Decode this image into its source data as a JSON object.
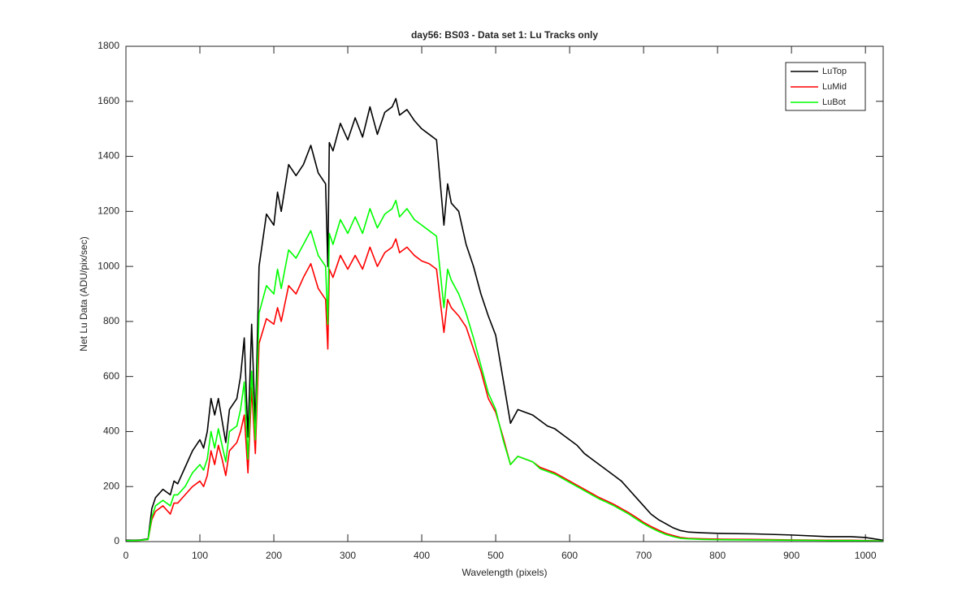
{
  "chart_data": {
    "type": "line",
    "title": "day56: BS03 - Data set 1: Lu Tracks only",
    "xlabel": "Wavelength (pixels)",
    "ylabel": "Net Lu Data (ADU/pix/sec)",
    "x": [
      0,
      10,
      20,
      30,
      35,
      40,
      50,
      60,
      65,
      70,
      80,
      90,
      100,
      105,
      110,
      115,
      120,
      125,
      130,
      135,
      140,
      150,
      155,
      160,
      165,
      170,
      175,
      180,
      190,
      200,
      205,
      210,
      220,
      230,
      240,
      250,
      260,
      270,
      273,
      275,
      280,
      290,
      300,
      310,
      320,
      330,
      340,
      350,
      360,
      365,
      370,
      380,
      390,
      400,
      410,
      420,
      430,
      435,
      440,
      450,
      460,
      470,
      480,
      490,
      500,
      510,
      520,
      530,
      540,
      550,
      560,
      570,
      580,
      590,
      600,
      610,
      620,
      630,
      640,
      650,
      660,
      670,
      680,
      690,
      700,
      710,
      720,
      730,
      740,
      750,
      760,
      780,
      800,
      850,
      900,
      950,
      980,
      1000,
      1024
    ],
    "series": [
      {
        "name": "LuTop",
        "color": "#000000",
        "values": [
          5,
          5,
          6,
          10,
          120,
          160,
          190,
          170,
          220,
          210,
          270,
          330,
          370,
          340,
          400,
          520,
          460,
          520,
          440,
          360,
          480,
          520,
          600,
          740,
          380,
          790,
          420,
          1000,
          1190,
          1150,
          1270,
          1200,
          1370,
          1330,
          1370,
          1440,
          1340,
          1300,
          1000,
          1450,
          1420,
          1520,
          1460,
          1540,
          1470,
          1580,
          1480,
          1560,
          1580,
          1610,
          1550,
          1570,
          1530,
          1500,
          1480,
          1460,
          1150,
          1300,
          1230,
          1200,
          1080,
          1000,
          900,
          820,
          750,
          590,
          430,
          480,
          470,
          460,
          440,
          420,
          410,
          390,
          370,
          350,
          320,
          300,
          280,
          260,
          240,
          220,
          190,
          160,
          130,
          100,
          80,
          65,
          50,
          40,
          35,
          32,
          30,
          28,
          24,
          18,
          18,
          15,
          5
        ]
      },
      {
        "name": "LuMid",
        "color": "#ff0000",
        "values": [
          3,
          4,
          5,
          8,
          80,
          110,
          130,
          100,
          140,
          140,
          170,
          200,
          220,
          200,
          240,
          330,
          280,
          350,
          300,
          240,
          330,
          360,
          400,
          460,
          250,
          560,
          320,
          720,
          810,
          790,
          850,
          800,
          930,
          900,
          960,
          1010,
          920,
          880,
          700,
          990,
          960,
          1040,
          990,
          1040,
          990,
          1070,
          1000,
          1050,
          1070,
          1100,
          1050,
          1070,
          1040,
          1020,
          1010,
          990,
          760,
          880,
          850,
          820,
          780,
          700,
          620,
          520,
          470,
          380,
          280,
          310,
          300,
          290,
          270,
          260,
          250,
          235,
          220,
          205,
          190,
          175,
          160,
          148,
          135,
          120,
          105,
          88,
          70,
          55,
          42,
          30,
          22,
          15,
          12,
          10,
          9,
          8,
          6,
          5,
          5,
          4,
          2
        ]
      },
      {
        "name": "LuBot",
        "color": "#00ff00",
        "values": [
          3,
          4,
          5,
          8,
          90,
          130,
          150,
          130,
          170,
          170,
          200,
          250,
          280,
          260,
          300,
          400,
          340,
          410,
          350,
          290,
          400,
          420,
          480,
          580,
          300,
          620,
          370,
          830,
          930,
          900,
          990,
          920,
          1060,
          1030,
          1080,
          1130,
          1040,
          1000,
          790,
          1120,
          1080,
          1170,
          1120,
          1180,
          1120,
          1210,
          1140,
          1190,
          1210,
          1240,
          1180,
          1210,
          1170,
          1150,
          1130,
          1110,
          850,
          990,
          950,
          900,
          830,
          740,
          640,
          540,
          480,
          370,
          280,
          310,
          300,
          290,
          265,
          255,
          245,
          230,
          215,
          200,
          185,
          170,
          155,
          143,
          130,
          115,
          100,
          82,
          65,
          50,
          37,
          26,
          18,
          12,
          10,
          8,
          7,
          6,
          5,
          4,
          4,
          3,
          2
        ]
      }
    ],
    "xlim": [
      0,
      1024
    ],
    "xticks": [
      0,
      100,
      200,
      300,
      400,
      500,
      600,
      700,
      800,
      900,
      1000
    ],
    "ylim": [
      0,
      1800
    ],
    "yticks": [
      0,
      200,
      400,
      600,
      800,
      1000,
      1200,
      1400,
      1600,
      1800
    ],
    "grid": false,
    "legend": "upper right"
  }
}
